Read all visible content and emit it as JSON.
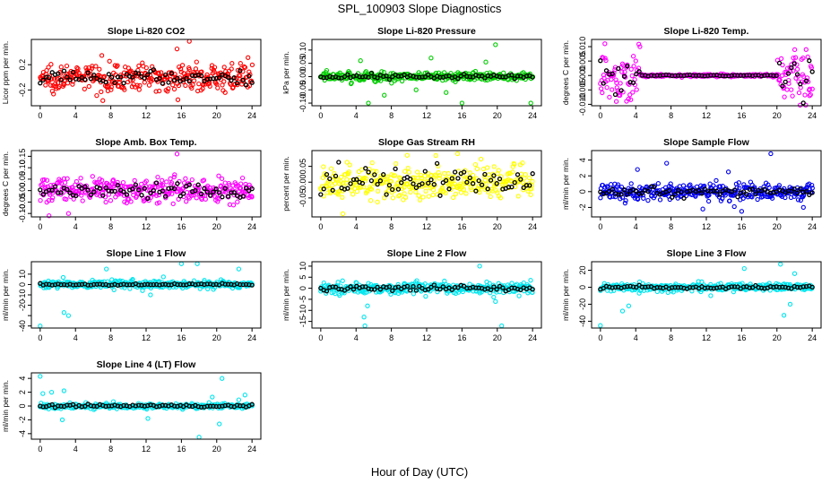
{
  "title": "SPL_100903  Slope Diagnostics",
  "xlabel": "Hour of Day (UTC)",
  "chart_data": [
    {
      "type": "scatter",
      "title": "Slope Li-820 CO2",
      "ylabel": "Licor ppm per min.",
      "color": "#ff0000",
      "ylim": [
        -0.45,
        0.6
      ],
      "yticks": [
        -0.2,
        0.2
      ],
      "ytick_labels": [
        "-0.2",
        "0.2"
      ],
      "xlim": [
        -1,
        25
      ],
      "xticks": [
        0,
        4,
        8,
        12,
        16,
        20,
        24
      ],
      "xtick_labels": [
        "0",
        "4",
        "8",
        "12",
        "16",
        "20",
        "24"
      ],
      "n": 330,
      "spread": 0.14,
      "mean_spread": 0.07,
      "outliers": [
        [
          16.9,
          0.57
        ],
        [
          15.5,
          0.45
        ]
      ]
    },
    {
      "type": "scatter",
      "title": "Slope Li-820 Pressure",
      "ylabel": "kPa per min.",
      "color": "#00cc00",
      "ylim": [
        -0.11,
        0.14
      ],
      "yticks": [
        -0.1,
        -0.05,
        0,
        0.05,
        0.1
      ],
      "ytick_labels": [
        "-0.10",
        "-0.05",
        "0.00",
        "0.05",
        "0.10"
      ],
      "xlim": [
        -1,
        25
      ],
      "xticks": [
        0,
        4,
        8,
        12,
        16,
        20,
        24
      ],
      "xtick_labels": [
        "0",
        "4",
        "8",
        "12",
        "16",
        "20",
        "24"
      ],
      "n": 330,
      "spread": 0.012,
      "mean_spread": 0.006,
      "outliers": [
        [
          4.5,
          0.06
        ],
        [
          5.4,
          -0.1
        ],
        [
          7.2,
          -0.07
        ],
        [
          10.8,
          -0.05
        ],
        [
          16,
          -0.1
        ],
        [
          19.8,
          0.12
        ],
        [
          23.8,
          -0.1
        ],
        [
          12.5,
          0.07
        ],
        [
          14.2,
          -0.06
        ],
        [
          18.7,
          0.055
        ]
      ]
    },
    {
      "type": "scatter",
      "title": "Slope Li-820 Temp.",
      "ylabel": "degrees C per min.",
      "color": "#ff00ff",
      "ylim": [
        -0.0105,
        0.0125
      ],
      "yticks": [
        -0.01,
        -0.005,
        0,
        0.005,
        0.01
      ],
      "ytick_labels": [
        "-0.010",
        "-0.005",
        "0.000",
        "0.005",
        "0.010"
      ],
      "xlim": [
        -1,
        25
      ],
      "xticks": [
        0,
        4,
        8,
        12,
        16,
        20,
        24
      ],
      "xtick_labels": [
        "0",
        "4",
        "8",
        "12",
        "16",
        "20",
        "24"
      ],
      "n": 330,
      "spread": 0.0003,
      "mean_spread": 0.00015,
      "edge_spread": 0.006,
      "edge_hours": [
        4.5,
        20
      ],
      "outliers": [
        [
          0.5,
          0.011
        ],
        [
          1.8,
          -0.009
        ],
        [
          23.3,
          0.009
        ],
        [
          0.2,
          -0.006
        ],
        [
          23.7,
          -0.007
        ]
      ]
    },
    {
      "type": "scatter",
      "title": "Slope Amb. Box Temp.",
      "ylabel": "degrees C per min.",
      "color": "#ff00ff",
      "ylim": [
        -0.115,
        0.175
      ],
      "yticks": [
        -0.1,
        -0.05,
        0,
        0.05,
        0.1,
        0.15
      ],
      "ytick_labels": [
        "-0.10",
        "-0.05",
        "0.00",
        "0.05",
        "0.10",
        "0.15"
      ],
      "xlim": [
        -1,
        25
      ],
      "xticks": [
        0,
        4,
        8,
        12,
        16,
        20,
        24
      ],
      "xtick_labels": [
        "0",
        "4",
        "8",
        "12",
        "16",
        "20",
        "24"
      ],
      "n": 330,
      "spread": 0.035,
      "mean_spread": 0.02,
      "outliers": [
        [
          15.5,
          0.16
        ],
        [
          3.2,
          -0.1
        ],
        [
          1,
          -0.11
        ]
      ]
    },
    {
      "type": "scatter",
      "title": "Slope Gas Stream RH",
      "ylabel": "percent per min.",
      "color": "#ffff00",
      "ylim": [
        -0.11,
        0.1
      ],
      "yticks": [
        -0.05,
        0,
        0.05
      ],
      "ytick_labels": [
        "-0.05",
        "0.00",
        "0.05"
      ],
      "xlim": [
        -1,
        25
      ],
      "xticks": [
        0,
        4,
        8,
        12,
        16,
        20,
        24
      ],
      "xtick_labels": [
        "0",
        "4",
        "8",
        "12",
        "16",
        "20",
        "24"
      ],
      "n": 330,
      "spread": 0.035,
      "mean_spread": 0.025,
      "outliers": [
        [
          15.5,
          0.09
        ],
        [
          2.5,
          -0.1
        ],
        [
          9.8,
          0.085
        ]
      ]
    },
    {
      "type": "scatter",
      "title": "Slope Sample Flow",
      "ylabel": "ml/min per min.",
      "color": "#0000ee",
      "ylim": [
        -3.2,
        5.2
      ],
      "yticks": [
        -2,
        0,
        2,
        4
      ],
      "ytick_labels": [
        "-2",
        "0",
        "2",
        "4"
      ],
      "xlim": [
        -1,
        25
      ],
      "xticks": [
        0,
        4,
        8,
        12,
        16,
        20,
        24
      ],
      "xtick_labels": [
        "0",
        "4",
        "8",
        "12",
        "16",
        "20",
        "24"
      ],
      "n": 330,
      "spread": 0.7,
      "mean_spread": 0.3,
      "outliers": [
        [
          19.3,
          4.8
        ],
        [
          7.5,
          3.6
        ],
        [
          16,
          -2.5
        ],
        [
          11.6,
          -2.2
        ],
        [
          4.2,
          2.8
        ],
        [
          14.5,
          2.5
        ],
        [
          23,
          -2
        ]
      ]
    },
    {
      "type": "scatter",
      "title": "Slope Line 1 Flow",
      "ylabel": "ml/min per min.",
      "color": "#00e5ee",
      "ylim": [
        -42,
        22
      ],
      "yticks": [
        -40,
        -30,
        -20,
        -10,
        0,
        10
      ],
      "ytick_labels": [
        "-40",
        "",
        "-20",
        "-10",
        "0",
        "10"
      ],
      "xlim": [
        -1,
        25
      ],
      "xticks": [
        0,
        4,
        8,
        12,
        16,
        20,
        24
      ],
      "xtick_labels": [
        "0",
        "4",
        "8",
        "12",
        "16",
        "20",
        "24"
      ],
      "n": 330,
      "spread": 2.5,
      "mean_spread": 0.6,
      "outliers": [
        [
          2.7,
          -27
        ],
        [
          3.2,
          -30
        ],
        [
          0,
          -40
        ],
        [
          16,
          20
        ],
        [
          17.8,
          20
        ],
        [
          7.5,
          15
        ],
        [
          22.5,
          15
        ],
        [
          12.5,
          -10
        ]
      ]
    },
    {
      "type": "scatter",
      "title": "Slope Line 2 Flow",
      "ylabel": "ml/min per min.",
      "color": "#00e5ee",
      "ylim": [
        -18,
        12
      ],
      "yticks": [
        -15,
        -10,
        -5,
        0,
        5,
        10
      ],
      "ytick_labels": [
        "-15",
        "-10",
        "-5",
        "0",
        "5",
        "10"
      ],
      "xlim": [
        -1,
        25
      ],
      "xticks": [
        0,
        4,
        8,
        12,
        16,
        20,
        24
      ],
      "xtick_labels": [
        "0",
        "4",
        "8",
        "12",
        "16",
        "20",
        "24"
      ],
      "n": 330,
      "spread": 1.6,
      "mean_spread": 0.9,
      "outliers": [
        [
          5,
          -17
        ],
        [
          4.9,
          -13
        ],
        [
          18,
          10
        ],
        [
          20.5,
          -17
        ],
        [
          5.3,
          -8
        ],
        [
          19.6,
          -4
        ],
        [
          19.8,
          -6
        ]
      ]
    },
    {
      "type": "scatter",
      "title": "Slope Line 3 Flow",
      "ylabel": "ml/min per min.",
      "color": "#00e5ee",
      "ylim": [
        -48,
        30
      ],
      "yticks": [
        -40,
        -20,
        0,
        20
      ],
      "ytick_labels": [
        "-40",
        "-20",
        "0",
        "20"
      ],
      "xlim": [
        -1,
        25
      ],
      "xticks": [
        0,
        4,
        8,
        12,
        16,
        20,
        24
      ],
      "xtick_labels": [
        "0",
        "4",
        "8",
        "12",
        "16",
        "20",
        "24"
      ],
      "n": 330,
      "spread": 3,
      "mean_spread": 1.2,
      "outliers": [
        [
          0,
          -45
        ],
        [
          2.5,
          -28
        ],
        [
          3.2,
          -22
        ],
        [
          16.3,
          22
        ],
        [
          20.8,
          -33
        ],
        [
          20.4,
          27
        ],
        [
          22,
          16
        ],
        [
          12.5,
          -10
        ],
        [
          21.5,
          -20
        ]
      ]
    },
    {
      "type": "scatter",
      "title": "Slope Line 4 (LT) Flow",
      "ylabel": "ml/min per min.",
      "color": "#00e5ee",
      "ylim": [
        -4.8,
        4.8
      ],
      "yticks": [
        -4,
        -2,
        0,
        2,
        4
      ],
      "ytick_labels": [
        "-4",
        "-2",
        "0",
        "2",
        "4"
      ],
      "xlim": [
        -1,
        25
      ],
      "xticks": [
        0,
        4,
        8,
        12,
        16,
        20,
        24
      ],
      "xtick_labels": [
        "0",
        "4",
        "8",
        "12",
        "16",
        "20",
        "24"
      ],
      "n": 330,
      "spread": 0.25,
      "mean_spread": 0.12,
      "outliers": [
        [
          0,
          4.3
        ],
        [
          18,
          -4.5
        ],
        [
          20.6,
          4
        ],
        [
          0.3,
          1.8
        ],
        [
          1.3,
          2
        ],
        [
          2.7,
          2.2
        ],
        [
          2.5,
          -2
        ],
        [
          12.2,
          -1.8
        ],
        [
          20.3,
          -2.6
        ],
        [
          19.5,
          1.3
        ],
        [
          22.5,
          0.9
        ],
        [
          23.2,
          1.6
        ]
      ]
    }
  ]
}
